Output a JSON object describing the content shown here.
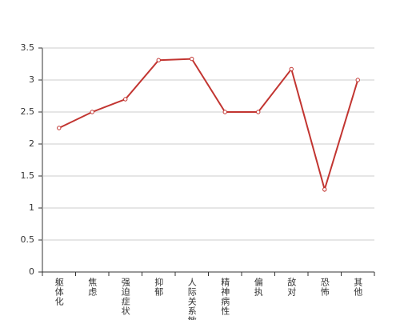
{
  "chart_data": {
    "type": "line",
    "categories": [
      "躯体化",
      "焦虑",
      "强迫症状",
      "抑郁",
      "人际关系敏感",
      "精神病性",
      "偏执",
      "敌对",
      "恐怖",
      "其他"
    ],
    "series": [
      {
        "color": "#c23531",
        "values": [
          2.25,
          2.5,
          2.7,
          3.31,
          3.33,
          2.5,
          2.5,
          3.17,
          1.29,
          3.0
        ]
      }
    ],
    "ylim": [
      0,
      3.5
    ],
    "yticks": [
      0,
      0.5,
      1,
      1.5,
      2,
      2.5,
      3,
      3.5
    ],
    "grid": true
  }
}
